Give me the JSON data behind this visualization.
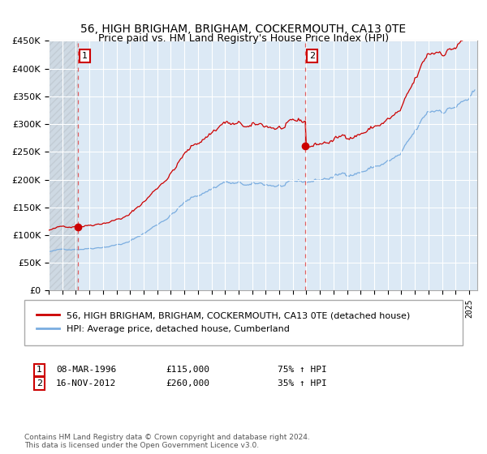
{
  "title": "56, HIGH BRIGHAM, BRIGHAM, COCKERMOUTH, CA13 0TE",
  "subtitle": "Price paid vs. HM Land Registry's House Price Index (HPI)",
  "red_label": "56, HIGH BRIGHAM, BRIGHAM, COCKERMOUTH, CA13 0TE (detached house)",
  "blue_label": "HPI: Average price, detached house, Cumberland",
  "annotation1_date": "08-MAR-1996",
  "annotation1_price": "£115,000",
  "annotation1_hpi": "75% ↑ HPI",
  "annotation2_date": "16-NOV-2012",
  "annotation2_price": "£260,000",
  "annotation2_hpi": "35% ↑ HPI",
  "sale1_year": 1996.19,
  "sale1_value": 115000,
  "sale2_year": 2012.88,
  "sale2_value": 260000,
  "ylim": [
    0,
    450000
  ],
  "yticks": [
    0,
    50000,
    100000,
    150000,
    200000,
    250000,
    300000,
    350000,
    400000,
    450000
  ],
  "background_color": "#dce9f5",
  "red_color": "#cc0000",
  "blue_color": "#7aade0",
  "grid_color": "#ffffff",
  "dashed_line_color": "#e05050",
  "footer": "Contains HM Land Registry data © Crown copyright and database right 2024.\nThis data is licensed under the Open Government Licence v3.0."
}
